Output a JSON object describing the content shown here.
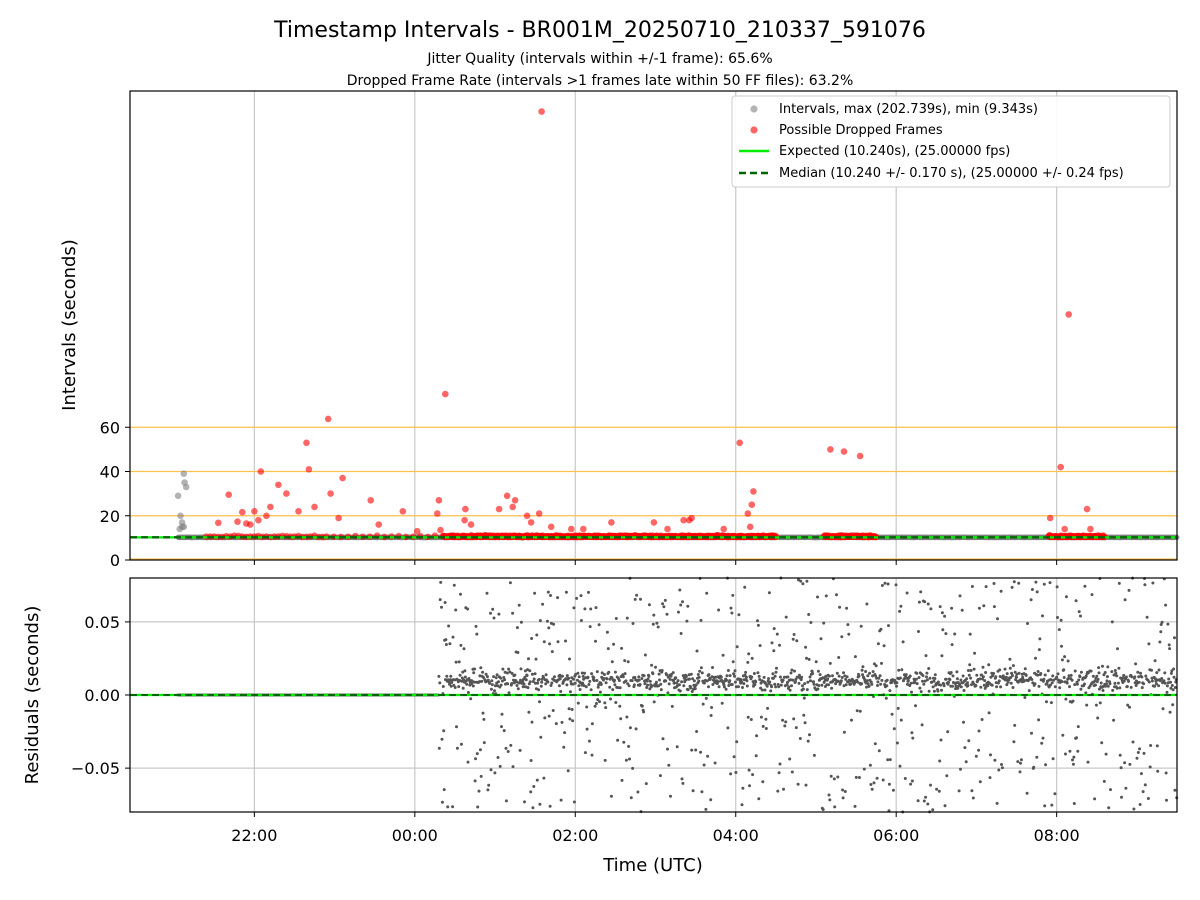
{
  "title": "Timestamp Intervals - BR001M_20250710_210337_591076",
  "subtitle_1": "Jitter Quality (intervals within +/-1 frame): 65.6%",
  "subtitle_2": "Dropped Frame Rate (intervals >1 frames late within 50 FF files): 63.2%",
  "colors": {
    "intervals": "#808080",
    "dropped": "#ff0000",
    "expected": "#00ee00",
    "median": "#006400",
    "threshold_lines": "#ffc04d",
    "residuals": "#555555",
    "grid": "#c8c8c8"
  },
  "chart_data": [
    {
      "type": "scatter",
      "title": "",
      "xlabel": "",
      "ylabel": "Intervals (seconds)",
      "x_ticks": [
        "22:00",
        "00:00",
        "02:00",
        "04:00",
        "06:00",
        "08:00"
      ],
      "x_tick_hours": [
        22,
        24,
        26,
        28,
        30,
        32
      ],
      "xlim_hours": [
        20.45,
        33.5
      ],
      "ylim": [
        0,
        212
      ],
      "y_ticks": [
        0,
        20,
        40,
        60
      ],
      "threshold_lines": [
        20,
        40,
        60
      ],
      "legend_position": "top-right",
      "legend": {
        "intervals": "Intervals, max (202.739s), min (9.343s)",
        "dropped": "Possible Dropped Frames",
        "expected": "Expected (10.240s), (25.00000 fps)",
        "median": "Median (10.240 +/- 0.170 s), (25.00000 +/- 0.24 fps)"
      },
      "expected_interval": 10.24,
      "median_interval": 10.24,
      "dense_band_y": 10.24,
      "dense_band_x_range": [
        21.05,
        33.5
      ],
      "series": [
        {
          "name": "Intervals, max (202.739s), min (9.343s)",
          "points": [
            [
              21.05,
              29
            ],
            [
              21.07,
              14
            ],
            [
              21.08,
              20
            ],
            [
              21.1,
              17
            ],
            [
              21.12,
              39
            ],
            [
              21.13,
              35
            ],
            [
              21.15,
              33
            ],
            [
              21.1,
              15
            ],
            [
              21.12,
              15
            ]
          ]
        },
        {
          "name": "Possible Dropped Frames",
          "points": [
            [
              21.55,
              16.8
            ],
            [
              21.68,
              29.5
            ],
            [
              21.79,
              17.3
            ],
            [
              21.85,
              21.6
            ],
            [
              21.9,
              16.5
            ],
            [
              22.08,
              40
            ],
            [
              21.95,
              16
            ],
            [
              22.2,
              24
            ],
            [
              22.3,
              34
            ],
            [
              22.15,
              20
            ],
            [
              22.05,
              18
            ],
            [
              22.0,
              22
            ],
            [
              22.4,
              30
            ],
            [
              22.55,
              22
            ],
            [
              22.65,
              53
            ],
            [
              22.68,
              41
            ],
            [
              22.75,
              24
            ],
            [
              22.95,
              30
            ],
            [
              22.92,
              63.8
            ],
            [
              23.1,
              37
            ],
            [
              23.05,
              19
            ],
            [
              23.45,
              27
            ],
            [
              23.55,
              16
            ],
            [
              23.85,
              22
            ],
            [
              24.03,
              13
            ],
            [
              24.28,
              21
            ],
            [
              24.32,
              13.5
            ],
            [
              24.3,
              27
            ],
            [
              24.38,
              75
            ],
            [
              24.63,
              23
            ],
            [
              24.62,
              18
            ],
            [
              24.7,
              16
            ],
            [
              25.05,
              23
            ],
            [
              25.15,
              29
            ],
            [
              25.25,
              27
            ],
            [
              25.22,
              24
            ],
            [
              25.4,
              20
            ],
            [
              25.45,
              17
            ],
            [
              25.55,
              21
            ],
            [
              25.58,
              202.7
            ],
            [
              25.7,
              15
            ],
            [
              25.95,
              14
            ],
            [
              26.1,
              14
            ],
            [
              26.45,
              17
            ],
            [
              26.98,
              17
            ],
            [
              27.15,
              14
            ],
            [
              27.35,
              18
            ],
            [
              27.42,
              18
            ],
            [
              27.45,
              19
            ],
            [
              27.85,
              14
            ],
            [
              28.05,
              53
            ],
            [
              28.18,
              15
            ],
            [
              28.2,
              25
            ],
            [
              28.22,
              31
            ],
            [
              28.15,
              21
            ],
            [
              29.18,
              50
            ],
            [
              29.35,
              49
            ],
            [
              29.55,
              47
            ],
            [
              31.92,
              19
            ],
            [
              32.05,
              42
            ],
            [
              32.15,
              111
            ],
            [
              32.1,
              14
            ],
            [
              32.38,
              23
            ],
            [
              32.42,
              14
            ]
          ]
        }
      ]
    },
    {
      "type": "scatter",
      "title": "",
      "xlabel": "Time (UTC)",
      "ylabel": "Residuals (seconds)",
      "x_ticks": [
        "22:00",
        "00:00",
        "02:00",
        "04:00",
        "06:00",
        "08:00"
      ],
      "ylim": [
        -0.08,
        0.08
      ],
      "y_ticks": [
        -0.05,
        0.0,
        0.05
      ],
      "y_tick_labels": [
        "−0.05",
        "0.00",
        "0.05"
      ],
      "zero_lines": [
        "expected",
        "median"
      ],
      "flat_segment_hours": [
        21.05,
        24.3
      ],
      "spread_segment_hours": [
        24.3,
        33.5
      ],
      "residual_range": [
        -0.08,
        0.08
      ]
    }
  ]
}
